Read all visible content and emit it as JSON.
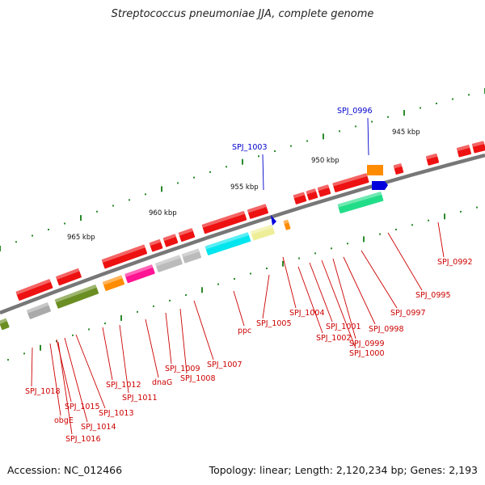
{
  "title": "Streptococcus pneumoniae JJA, complete genome",
  "footer": {
    "accession": "Accession: NC_012466",
    "summary": "Topology: linear; Length: 2,120,234 bp; Genes: 2,193"
  },
  "colors": {
    "gene_label": "#cc0000",
    "highlight_label": "#0000cc",
    "backbone": "#777777",
    "ticks": "#2a8a2a"
  },
  "scale_ticks": [
    "945 kbp",
    "950 kbp",
    "955 kbp",
    "960 kbp",
    "965 kbp"
  ],
  "highlight_labels": [
    "SPJ_0996",
    "SPJ_1003"
  ],
  "gene_labels": [
    "SPJ_0992",
    "SPJ_0995",
    "SPJ_0997",
    "SPJ_0998",
    "SPJ_0999",
    "SPJ_1000",
    "SPJ_1001",
    "SPJ_1002",
    "SPJ_1004",
    "SPJ_1005",
    "ppc",
    "SPJ_1007",
    "SPJ_1008",
    "SPJ_1009",
    "dnaG",
    "SPJ_1011",
    "SPJ_1012",
    "SPJ_1013",
    "SPJ_1014",
    "SPJ_1015",
    "SPJ_1016",
    "obgE",
    "SPJ_1018"
  ]
}
